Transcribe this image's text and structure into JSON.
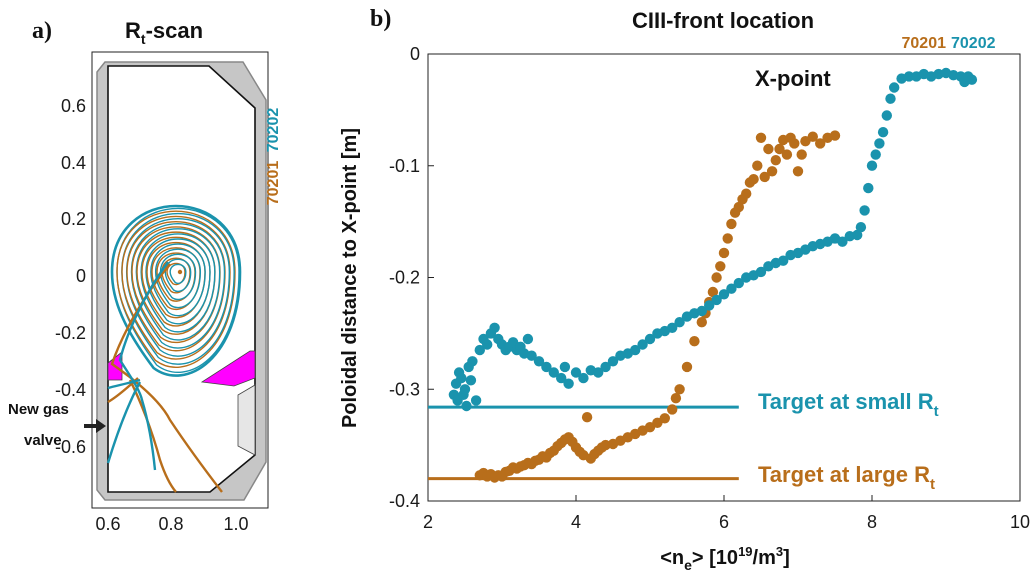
{
  "colors": {
    "blue": "#1a93ad",
    "orange": "#b86e1b",
    "magenta": "#ff00ff",
    "wall": "#c8c8c8"
  },
  "panel_a": {
    "label": "a)",
    "title_main": "R",
    "title_sub": "t",
    "title_rest": "-scan",
    "shot_blue": "70202",
    "shot_orange": "70201",
    "gas_valve_line1": "New gas",
    "gas_valve_line2": "valve",
    "x_ticks": [
      "0.6",
      "0.8",
      "1.0"
    ],
    "y_ticks": [
      "0.6",
      "0.4",
      "0.2",
      "0",
      "-0.2",
      "-0.4",
      "-0.6"
    ]
  },
  "panel_b": {
    "label": "b)",
    "shot_orange": "70201",
    "shot_blue": "70202",
    "xpoint_label": "X-point",
    "target_small_main": "Target at small R",
    "target_small_sub": "t",
    "target_large_main": "Target at large R",
    "target_large_sub": "t",
    "xlabel_main": "<n",
    "xlabel_sub": "e",
    "xlabel_rest": "> [10",
    "xlabel_sup": "19",
    "xlabel_tail": "/m",
    "xlabel_sup2": "3",
    "xlabel_end": "]"
  },
  "chart_data": [
    {
      "type": "line",
      "title": "Rt-scan",
      "xlim": [
        0.57,
        1.12
      ],
      "ylim": [
        -0.8,
        0.78
      ],
      "x_ticks": [
        0.6,
        0.8,
        1.0
      ],
      "y_ticks": [
        0.6,
        0.4,
        0.2,
        0,
        -0.2,
        -0.4,
        -0.6
      ],
      "series": [
        {
          "name": "70201",
          "color": "#b86e1b"
        },
        {
          "name": "70202",
          "color": "#1a93ad"
        }
      ]
    },
    {
      "type": "scatter",
      "title": "CIII-front location",
      "xlabel": "<ne> [10^19/m^3]",
      "ylabel": "Poloidal distance to X-point [m]",
      "xlim": [
        2,
        10
      ],
      "ylim": [
        -0.4,
        0
      ],
      "x_ticks": [
        2,
        4,
        6,
        8,
        10
      ],
      "y_ticks": [
        0,
        -0.1,
        -0.2,
        -0.3,
        -0.4
      ],
      "series": [
        {
          "name": "70201",
          "color": "#b86e1b",
          "points": [
            [
              2.7,
              -0.377
            ],
            [
              2.75,
              -0.375
            ],
            [
              2.8,
              -0.378
            ],
            [
              2.85,
              -0.376
            ],
            [
              2.9,
              -0.379
            ],
            [
              2.95,
              -0.377
            ],
            [
              3.0,
              -0.378
            ],
            [
              3.05,
              -0.374
            ],
            [
              3.1,
              -0.373
            ],
            [
              3.15,
              -0.37
            ],
            [
              3.2,
              -0.371
            ],
            [
              3.25,
              -0.369
            ],
            [
              3.3,
              -0.368
            ],
            [
              3.35,
              -0.366
            ],
            [
              3.4,
              -0.367
            ],
            [
              3.45,
              -0.364
            ],
            [
              3.5,
              -0.363
            ],
            [
              3.55,
              -0.36
            ],
            [
              3.6,
              -0.361
            ],
            [
              3.65,
              -0.357
            ],
            [
              3.7,
              -0.355
            ],
            [
              3.75,
              -0.351
            ],
            [
              3.8,
              -0.348
            ],
            [
              3.85,
              -0.345
            ],
            [
              3.9,
              -0.343
            ],
            [
              3.95,
              -0.347
            ],
            [
              4.0,
              -0.352
            ],
            [
              4.05,
              -0.356
            ],
            [
              4.1,
              -0.359
            ],
            [
              4.15,
              -0.325
            ],
            [
              4.2,
              -0.362
            ],
            [
              4.25,
              -0.358
            ],
            [
              4.3,
              -0.355
            ],
            [
              4.35,
              -0.352
            ],
            [
              4.4,
              -0.35
            ],
            [
              4.5,
              -0.349
            ],
            [
              4.6,
              -0.346
            ],
            [
              4.7,
              -0.343
            ],
            [
              4.8,
              -0.34
            ],
            [
              4.9,
              -0.337
            ],
            [
              5.0,
              -0.334
            ],
            [
              5.1,
              -0.33
            ],
            [
              5.2,
              -0.326
            ],
            [
              5.3,
              -0.318
            ],
            [
              5.35,
              -0.308
            ],
            [
              5.4,
              -0.3
            ],
            [
              5.5,
              -0.28
            ],
            [
              5.6,
              -0.257
            ],
            [
              5.7,
              -0.24
            ],
            [
              5.75,
              -0.232
            ],
            [
              5.8,
              -0.222
            ],
            [
              5.85,
              -0.213
            ],
            [
              5.9,
              -0.2
            ],
            [
              5.95,
              -0.19
            ],
            [
              6.0,
              -0.178
            ],
            [
              6.05,
              -0.165
            ],
            [
              6.1,
              -0.152
            ],
            [
              6.15,
              -0.142
            ],
            [
              6.2,
              -0.137
            ],
            [
              6.25,
              -0.13
            ],
            [
              6.3,
              -0.125
            ],
            [
              6.35,
              -0.115
            ],
            [
              6.4,
              -0.112
            ],
            [
              6.45,
              -0.1
            ],
            [
              6.5,
              -0.075
            ],
            [
              6.55,
              -0.11
            ],
            [
              6.6,
              -0.085
            ],
            [
              6.65,
              -0.105
            ],
            [
              6.7,
              -0.095
            ],
            [
              6.75,
              -0.085
            ],
            [
              6.8,
              -0.077
            ],
            [
              6.85,
              -0.09
            ],
            [
              6.9,
              -0.075
            ],
            [
              6.95,
              -0.08
            ],
            [
              7.0,
              -0.105
            ],
            [
              7.05,
              -0.09
            ],
            [
              7.1,
              -0.078
            ],
            [
              7.2,
              -0.074
            ],
            [
              7.3,
              -0.08
            ],
            [
              7.4,
              -0.075
            ],
            [
              7.5,
              -0.073
            ]
          ]
        },
        {
          "name": "70202",
          "color": "#1a93ad",
          "points": [
            [
              2.35,
              -0.305
            ],
            [
              2.38,
              -0.295
            ],
            [
              2.4,
              -0.31
            ],
            [
              2.42,
              -0.285
            ],
            [
              2.45,
              -0.29
            ],
            [
              2.48,
              -0.305
            ],
            [
              2.5,
              -0.3
            ],
            [
              2.52,
              -0.315
            ],
            [
              2.55,
              -0.28
            ],
            [
              2.58,
              -0.292
            ],
            [
              2.6,
              -0.275
            ],
            [
              2.65,
              -0.31
            ],
            [
              2.7,
              -0.265
            ],
            [
              2.75,
              -0.255
            ],
            [
              2.8,
              -0.26
            ],
            [
              2.85,
              -0.25
            ],
            [
              2.9,
              -0.245
            ],
            [
              2.95,
              -0.255
            ],
            [
              3.0,
              -0.26
            ],
            [
              3.05,
              -0.265
            ],
            [
              3.1,
              -0.262
            ],
            [
              3.15,
              -0.258
            ],
            [
              3.2,
              -0.265
            ],
            [
              3.25,
              -0.262
            ],
            [
              3.3,
              -0.268
            ],
            [
              3.35,
              -0.255
            ],
            [
              3.4,
              -0.27
            ],
            [
              3.5,
              -0.275
            ],
            [
              3.6,
              -0.28
            ],
            [
              3.7,
              -0.285
            ],
            [
              3.8,
              -0.29
            ],
            [
              3.85,
              -0.28
            ],
            [
              3.9,
              -0.295
            ],
            [
              4.0,
              -0.285
            ],
            [
              4.1,
              -0.29
            ],
            [
              4.2,
              -0.283
            ],
            [
              4.3,
              -0.285
            ],
            [
              4.4,
              -0.28
            ],
            [
              4.5,
              -0.275
            ],
            [
              4.6,
              -0.27
            ],
            [
              4.7,
              -0.268
            ],
            [
              4.8,
              -0.265
            ],
            [
              4.9,
              -0.26
            ],
            [
              5.0,
              -0.255
            ],
            [
              5.1,
              -0.25
            ],
            [
              5.2,
              -0.248
            ],
            [
              5.3,
              -0.245
            ],
            [
              5.4,
              -0.24
            ],
            [
              5.5,
              -0.235
            ],
            [
              5.6,
              -0.232
            ],
            [
              5.7,
              -0.23
            ],
            [
              5.8,
              -0.225
            ],
            [
              5.9,
              -0.22
            ],
            [
              6.0,
              -0.215
            ],
            [
              6.1,
              -0.21
            ],
            [
              6.2,
              -0.205
            ],
            [
              6.3,
              -0.2
            ],
            [
              6.4,
              -0.198
            ],
            [
              6.5,
              -0.195
            ],
            [
              6.6,
              -0.19
            ],
            [
              6.7,
              -0.187
            ],
            [
              6.8,
              -0.185
            ],
            [
              6.9,
              -0.18
            ],
            [
              7.0,
              -0.178
            ],
            [
              7.1,
              -0.175
            ],
            [
              7.2,
              -0.172
            ],
            [
              7.3,
              -0.17
            ],
            [
              7.4,
              -0.168
            ],
            [
              7.5,
              -0.165
            ],
            [
              7.6,
              -0.168
            ],
            [
              7.7,
              -0.163
            ],
            [
              7.8,
              -0.162
            ],
            [
              7.85,
              -0.155
            ],
            [
              7.9,
              -0.14
            ],
            [
              7.95,
              -0.12
            ],
            [
              8.0,
              -0.1
            ],
            [
              8.05,
              -0.09
            ],
            [
              8.1,
              -0.08
            ],
            [
              8.15,
              -0.07
            ],
            [
              8.2,
              -0.055
            ],
            [
              8.25,
              -0.04
            ],
            [
              8.3,
              -0.03
            ],
            [
              8.4,
              -0.022
            ],
            [
              8.5,
              -0.02
            ],
            [
              8.6,
              -0.02
            ],
            [
              8.7,
              -0.018
            ],
            [
              8.8,
              -0.02
            ],
            [
              8.9,
              -0.018
            ],
            [
              9.0,
              -0.017
            ],
            [
              9.1,
              -0.019
            ],
            [
              9.2,
              -0.02
            ],
            [
              9.25,
              -0.025
            ],
            [
              9.3,
              -0.02
            ],
            [
              9.35,
              -0.023
            ]
          ]
        }
      ],
      "reference_lines": [
        {
          "name": "Target at small Rt",
          "y": -0.316,
          "x": [
            2.0,
            6.2
          ],
          "color": "#1a93ad"
        },
        {
          "name": "Target at large Rt",
          "y": -0.38,
          "x": [
            2.0,
            6.2
          ],
          "color": "#b86e1b"
        }
      ]
    }
  ]
}
